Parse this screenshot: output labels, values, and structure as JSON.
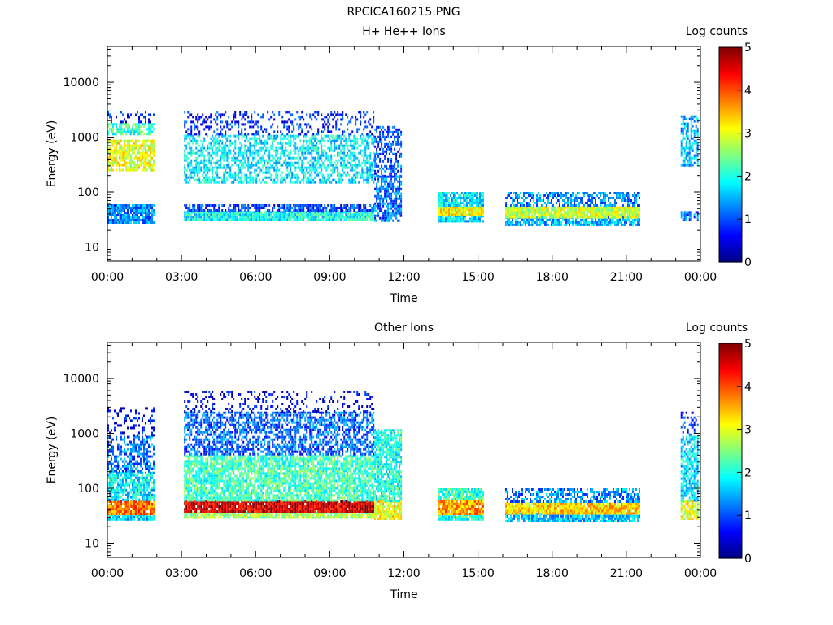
{
  "figure_title": "RPCICA160215.PNG",
  "colorbar": {
    "label": "Log counts",
    "ticks": [
      "0",
      "1",
      "2",
      "3",
      "4",
      "5"
    ],
    "range": [
      0,
      5
    ]
  },
  "chart_data": [
    {
      "type": "heatmap",
      "title": "H+ He++ Ions",
      "xlabel": "Time",
      "ylabel": "Energy (eV)",
      "x_ticks": [
        "00:00",
        "03:00",
        "06:00",
        "09:00",
        "12:00",
        "15:00",
        "18:00",
        "21:00",
        "00:00"
      ],
      "y_ticks": [
        "10",
        "100",
        "1000",
        "10000"
      ],
      "xlim_hours": [
        0,
        24
      ],
      "ylim_eV": [
        5.5,
        45000
      ],
      "y_scale": "log",
      "colorbar_label": "Log counts",
      "data_blocks": [
        {
          "t": [
            0.0,
            1.9
          ],
          "bands": [
            {
              "e": [
                28,
                60
              ],
              "v": 1.3,
              "fill": 0.9
            },
            {
              "e": [
                250,
                900
              ],
              "v": 3.0,
              "fill": 0.75
            },
            {
              "e": [
                1100,
                1800
              ],
              "v": 2.2,
              "fill": 0.7
            },
            {
              "e": [
                1800,
                3000
              ],
              "v": 0.7,
              "fill": 0.3
            }
          ]
        },
        {
          "t": [
            3.1,
            10.8
          ],
          "bands": [
            {
              "e": [
                30,
                45
              ],
              "v": 1.9,
              "fill": 0.95
            },
            {
              "e": [
                45,
                60
              ],
              "v": 0.9,
              "fill": 0.7
            },
            {
              "e": [
                150,
                1100
              ],
              "v": 1.8,
              "fill": 0.55
            },
            {
              "e": [
                1100,
                3000
              ],
              "v": 0.8,
              "fill": 0.3
            }
          ]
        },
        {
          "t": [
            10.8,
            11.9
          ],
          "bands": [
            {
              "e": [
                30,
                200
              ],
              "v": 1.2,
              "fill": 0.7
            },
            {
              "e": [
                200,
                1600
              ],
              "v": 1.0,
              "fill": 0.55
            }
          ]
        },
        {
          "t": [
            13.4,
            15.2
          ],
          "bands": [
            {
              "e": [
                28,
                38
              ],
              "v": 1.7,
              "fill": 0.9
            },
            {
              "e": [
                38,
                55
              ],
              "v": 3.1,
              "fill": 0.95
            },
            {
              "e": [
                55,
                100
              ],
              "v": 1.8,
              "fill": 0.85
            }
          ]
        },
        {
          "t": [
            16.1,
            21.5
          ],
          "bands": [
            {
              "e": [
                26,
                36
              ],
              "v": 1.5,
              "fill": 0.8
            },
            {
              "e": [
                36,
                55
              ],
              "v": 2.9,
              "fill": 0.95
            },
            {
              "e": [
                55,
                100
              ],
              "v": 1.3,
              "fill": 0.55
            }
          ]
        },
        {
          "t": [
            23.2,
            23.9
          ],
          "bands": [
            {
              "e": [
                30,
                45
              ],
              "v": 1.1,
              "fill": 0.7
            },
            {
              "e": [
                300,
                2500
              ],
              "v": 1.5,
              "fill": 0.6
            }
          ]
        }
      ]
    },
    {
      "type": "heatmap",
      "title": "Other Ions",
      "xlabel": "Time",
      "ylabel": "Energy (eV)",
      "x_ticks": [
        "00:00",
        "03:00",
        "06:00",
        "09:00",
        "12:00",
        "15:00",
        "18:00",
        "21:00",
        "00:00"
      ],
      "y_ticks": [
        "10",
        "100",
        "1000",
        "10000"
      ],
      "xlim_hours": [
        0,
        24
      ],
      "ylim_eV": [
        5.5,
        45000
      ],
      "y_scale": "log",
      "colorbar_label": "Log counts",
      "data_blocks": [
        {
          "t": [
            0.0,
            1.9
          ],
          "bands": [
            {
              "e": [
                27,
                35
              ],
              "v": 1.7,
              "fill": 0.9
            },
            {
              "e": [
                35,
                60
              ],
              "v": 3.8,
              "fill": 0.95
            },
            {
              "e": [
                60,
                200
              ],
              "v": 1.8,
              "fill": 0.75
            },
            {
              "e": [
                200,
                900
              ],
              "v": 1.2,
              "fill": 0.55
            },
            {
              "e": [
                900,
                3000
              ],
              "v": 0.6,
              "fill": 0.25
            }
          ]
        },
        {
          "t": [
            3.1,
            10.8
          ],
          "bands": [
            {
              "e": [
                28,
                38
              ],
              "v": 2.7,
              "fill": 0.9
            },
            {
              "e": [
                38,
                60
              ],
              "v": 4.6,
              "fill": 0.95
            },
            {
              "e": [
                60,
                400
              ],
              "v": 2.2,
              "fill": 0.8
            },
            {
              "e": [
                400,
                2500
              ],
              "v": 1.1,
              "fill": 0.6
            },
            {
              "e": [
                2500,
                6000
              ],
              "v": 0.5,
              "fill": 0.2
            }
          ]
        },
        {
          "t": [
            10.8,
            11.9
          ],
          "bands": [
            {
              "e": [
                28,
                60
              ],
              "v": 3.1,
              "fill": 0.9
            },
            {
              "e": [
                60,
                1200
              ],
              "v": 2.0,
              "fill": 0.8
            }
          ]
        },
        {
          "t": [
            13.4,
            15.2
          ],
          "bands": [
            {
              "e": [
                26,
                35
              ],
              "v": 2.0,
              "fill": 0.9
            },
            {
              "e": [
                35,
                60
              ],
              "v": 3.6,
              "fill": 0.95
            },
            {
              "e": [
                60,
                100
              ],
              "v": 2.1,
              "fill": 0.85
            }
          ]
        },
        {
          "t": [
            16.1,
            21.5
          ],
          "bands": [
            {
              "e": [
                26,
                36
              ],
              "v": 1.6,
              "fill": 0.85
            },
            {
              "e": [
                36,
                55
              ],
              "v": 3.3,
              "fill": 0.95
            },
            {
              "e": [
                55,
                100
              ],
              "v": 1.3,
              "fill": 0.55
            }
          ]
        },
        {
          "t": [
            23.2,
            23.9
          ],
          "bands": [
            {
              "e": [
                28,
                60
              ],
              "v": 3.0,
              "fill": 0.85
            },
            {
              "e": [
                60,
                900
              ],
              "v": 1.7,
              "fill": 0.7
            },
            {
              "e": [
                900,
                2500
              ],
              "v": 0.7,
              "fill": 0.35
            }
          ]
        }
      ]
    }
  ]
}
